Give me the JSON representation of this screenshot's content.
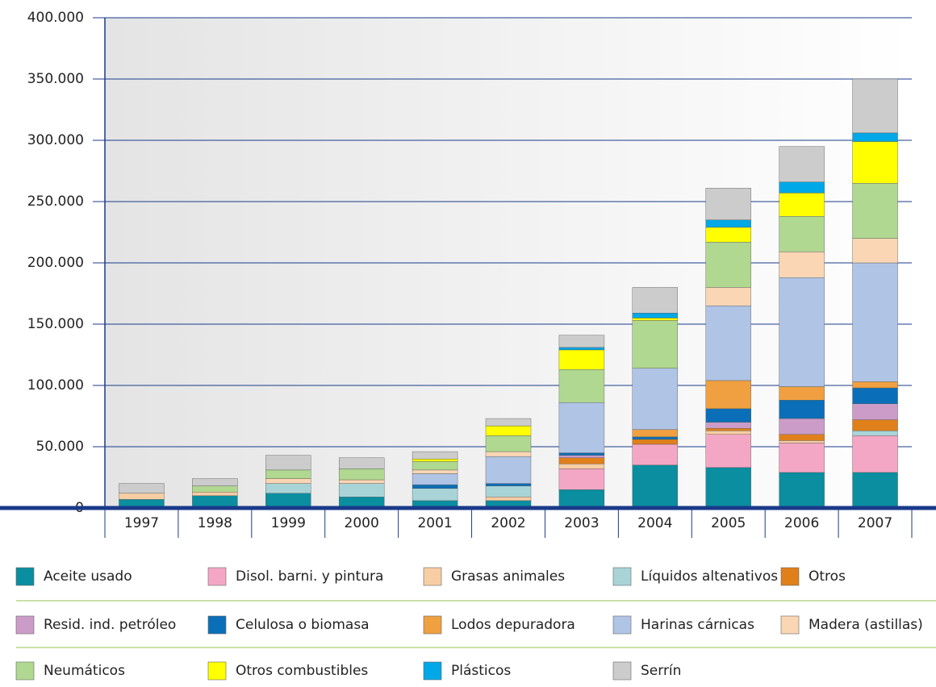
{
  "chart_data": {
    "type": "stacked-bar",
    "categories": [
      "1997",
      "1998",
      "1999",
      "2000",
      "2001",
      "2002",
      "2003",
      "2004",
      "2005",
      "2006",
      "2007"
    ],
    "ylim": [
      0,
      400000
    ],
    "yticks": [
      0,
      {
        "value": 50000,
        "label": "50.000"
      },
      {
        "value": 100000,
        "label": "100.000"
      },
      {
        "value": 150000,
        "label": "150.000"
      },
      {
        "value": 200000,
        "label": "200.000"
      },
      {
        "value": 250000,
        "label": "250.000"
      },
      {
        "value": 300000,
        "label": "300.000"
      },
      {
        "value": 350000,
        "label": "350.000"
      },
      {
        "value": 400000,
        "label": "400.000"
      }
    ],
    "grid": true,
    "series": [
      {
        "name": "Aceite usado",
        "color": "#0a8ea0",
        "values": [
          7000,
          10000,
          12000,
          9000,
          6000,
          6000,
          15000,
          35000,
          33000,
          29000,
          29000
        ]
      },
      {
        "name": "Disol. barni. y pintura",
        "color": "#f4a7c4",
        "values": [
          0,
          0,
          0,
          0,
          0,
          0,
          17000,
          17000,
          27000,
          24000,
          30000
        ]
      },
      {
        "name": "Grasas animales",
        "color": "#f7cda4",
        "values": [
          5000,
          3000,
          0,
          0,
          0,
          3000,
          4000,
          0,
          3000,
          2000,
          0
        ]
      },
      {
        "name": "Líquidos altenativos",
        "color": "#a8d4d8",
        "values": [
          0,
          0,
          8000,
          11000,
          10000,
          9000,
          0,
          0,
          0,
          0,
          4000
        ]
      },
      {
        "name": "Otros",
        "color": "#e0801a",
        "values": [
          0,
          0,
          0,
          0,
          0,
          0,
          5000,
          4000,
          2000,
          5000,
          9000
        ]
      },
      {
        "name": "Resid. ind. petróleo",
        "color": "#cc9cc8",
        "values": [
          0,
          0,
          0,
          0,
          0,
          0,
          2000,
          0,
          5000,
          13000,
          13000
        ]
      },
      {
        "name": "Celulosa o biomasa",
        "color": "#0a6fb8",
        "values": [
          0,
          0,
          0,
          0,
          3000,
          2000,
          2000,
          2000,
          11000,
          15000,
          13000
        ]
      },
      {
        "name": "Lodos depuradora",
        "color": "#f0a040",
        "values": [
          0,
          0,
          0,
          0,
          0,
          0,
          0,
          6000,
          23000,
          11000,
          5000
        ]
      },
      {
        "name": "Harinas cárnicas",
        "color": "#b0c4e6",
        "values": [
          0,
          0,
          0,
          0,
          9000,
          22000,
          41000,
          50000,
          61000,
          89000,
          97000
        ]
      },
      {
        "name": "Madera (astillas)",
        "color": "#fad6b4",
        "values": [
          0,
          0,
          4000,
          3000,
          3000,
          4000,
          0,
          0,
          15000,
          21000,
          20000
        ]
      },
      {
        "name": "Neumáticos",
        "color": "#b0d890",
        "values": [
          0,
          5000,
          7000,
          9000,
          7000,
          13000,
          27000,
          39000,
          37000,
          29000,
          45000
        ]
      },
      {
        "name": "Otros combustibles",
        "color": "#ffff00",
        "values": [
          0,
          0,
          0,
          0,
          2000,
          8000,
          16000,
          2000,
          12000,
          19000,
          34000
        ]
      },
      {
        "name": "Plásticos",
        "color": "#00a8e8",
        "values": [
          0,
          0,
          0,
          0,
          0,
          0,
          2000,
          4000,
          6000,
          9000,
          7000
        ]
      },
      {
        "name": "Serrín",
        "color": "#cccccc",
        "values": [
          8000,
          6000,
          12000,
          9000,
          6000,
          6000,
          10000,
          21000,
          26000,
          29000,
          44000
        ]
      }
    ]
  }
}
